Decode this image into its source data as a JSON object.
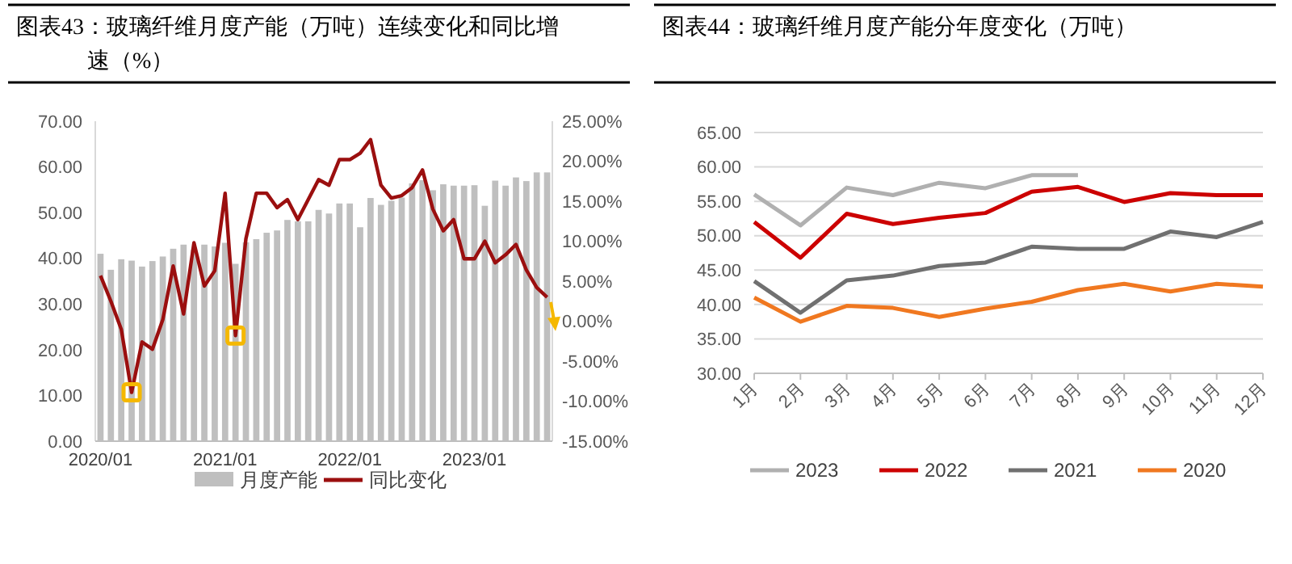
{
  "chart_data": [
    {
      "type": "bar",
      "title": "图表43：玻璃纤维月度产能（万吨）连续变化和同比增速（%）",
      "categories": [
        "2020/01",
        null,
        null,
        null,
        null,
        null,
        null,
        null,
        null,
        null,
        null,
        null,
        "2021/01",
        null,
        null,
        null,
        null,
        null,
        null,
        null,
        null,
        null,
        null,
        null,
        "2022/01",
        null,
        null,
        null,
        null,
        null,
        null,
        null,
        null,
        null,
        null,
        null,
        "2023/01",
        null,
        null,
        null,
        null,
        null,
        null,
        null
      ],
      "series": [
        {
          "name": "月度产能",
          "color": "#bfbfbf",
          "values": [
            41.0,
            37.5,
            39.8,
            39.5,
            38.2,
            39.4,
            40.4,
            42.1,
            43.0,
            41.9,
            43.0,
            42.6,
            43.4,
            38.8,
            43.5,
            44.2,
            45.6,
            46.1,
            48.4,
            48.1,
            48.1,
            50.6,
            49.8,
            52.0,
            52.0,
            46.8,
            53.2,
            51.7,
            52.6,
            53.3,
            56.4,
            57.1,
            54.9,
            56.2,
            55.9,
            55.9,
            56.0,
            51.5,
            57.0,
            55.9,
            57.7,
            56.9,
            58.8,
            58.8
          ]
        },
        {
          "name": "同比变化",
          "type": "line",
          "axis": "y2",
          "color": "#9b0f0f",
          "values": [
            5.7,
            2.5,
            -1.0,
            -8.9,
            -2.6,
            -3.5,
            0.2,
            6.9,
            0.9,
            9.8,
            4.4,
            6.3,
            16.0,
            -1.8,
            10.3,
            16.0,
            16.0,
            14.2,
            15.2,
            12.7,
            15.2,
            17.7,
            17.0,
            20.2,
            20.2,
            21.0,
            22.7,
            17.0,
            15.4,
            15.7,
            16.7,
            18.9,
            14.0,
            11.3,
            12.7,
            7.8,
            7.8,
            10.0,
            7.3,
            8.3,
            9.6,
            6.4,
            4.2,
            3.0
          ]
        }
      ],
      "ylim": [
        0,
        70
      ],
      "yticks": [
        {
          "value": 0,
          "label": "0.00"
        },
        {
          "value": 10,
          "label": "10.00"
        },
        {
          "value": 20,
          "label": "20.00"
        },
        {
          "value": 30,
          "label": "30.00"
        },
        {
          "value": 40,
          "label": "40.00"
        },
        {
          "value": 50,
          "label": "50.00"
        },
        {
          "value": 60,
          "label": "60.00"
        },
        {
          "value": 70,
          "label": "70.00"
        }
      ],
      "y2lim": [
        -15,
        25
      ],
      "y2ticks": [
        {
          "value": -15,
          "label": "-15.00%"
        },
        {
          "value": -10,
          "label": "-10.00%"
        },
        {
          "value": -5,
          "label": "-5.00%"
        },
        {
          "value": 0,
          "label": "0.00%"
        },
        {
          "value": 5,
          "label": "5.00%"
        },
        {
          "value": 10,
          "label": "10.00%"
        },
        {
          "value": 15,
          "label": "15.00%"
        },
        {
          "value": 20,
          "label": "20.00%"
        },
        {
          "value": 25,
          "label": "25.00%"
        }
      ],
      "grid": false,
      "legend": "bottom"
    },
    {
      "type": "line",
      "title": "图表44：玻璃纤维月度产能分年度变化（万吨）",
      "categories": [
        "1月",
        "2月",
        "3月",
        "4月",
        "5月",
        "6月",
        "7月",
        "8月",
        "9月",
        "10月",
        "11月",
        "12月"
      ],
      "series": [
        {
          "name": "2023",
          "color": "#b0b0b0",
          "values": [
            56.0,
            51.5,
            57.0,
            55.9,
            57.7,
            56.9,
            58.8,
            58.8,
            null,
            null,
            null,
            null
          ]
        },
        {
          "name": "2022",
          "color": "#cc0000",
          "values": [
            52.0,
            46.8,
            53.2,
            51.7,
            52.6,
            53.3,
            56.4,
            57.1,
            54.9,
            56.2,
            55.9,
            55.9
          ]
        },
        {
          "name": "2021",
          "color": "#707070",
          "values": [
            43.4,
            38.8,
            43.5,
            44.2,
            45.6,
            46.1,
            48.4,
            48.1,
            48.1,
            50.6,
            49.8,
            52.0
          ]
        },
        {
          "name": "2020",
          "color": "#f07820",
          "values": [
            41.0,
            37.5,
            39.8,
            39.5,
            38.2,
            39.4,
            40.4,
            42.1,
            43.0,
            41.9,
            43.0,
            42.6
          ]
        }
      ],
      "ylim": [
        30,
        65
      ],
      "yticks": [
        {
          "value": 30,
          "label": "30.00"
        },
        {
          "value": 35,
          "label": "35.00"
        },
        {
          "value": 40,
          "label": "40.00"
        },
        {
          "value": 45,
          "label": "45.00"
        },
        {
          "value": 50,
          "label": "50.00"
        },
        {
          "value": 55,
          "label": "55.00"
        },
        {
          "value": 60,
          "label": "60.00"
        },
        {
          "value": 65,
          "label": "65.00"
        }
      ],
      "grid": "y",
      "legend": "bottom"
    }
  ]
}
